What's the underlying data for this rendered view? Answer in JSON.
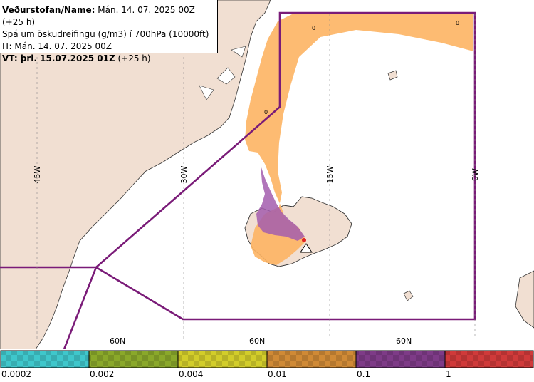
{
  "header": {
    "line1_bold": "Veðurstofan/Name:",
    "line1_rest": " Mán. 14. 07. 2025 00Z (+25 h)",
    "line2": "Spá um öskudreifingu (g/m3) í 700hPa (10000ft)",
    "line3": "IT: Mán. 14. 07. 2025 00Z",
    "line4_bold": "VT: þri. 15.07.2025 01Z",
    "line4_rest": " (+25 h)"
  },
  "map": {
    "longitude_labels": [
      "45W",
      "30W",
      "15W",
      "0W"
    ],
    "latitude_labels": [
      "60N",
      "60N",
      "60N"
    ],
    "contour_labels": [
      "0",
      "0",
      "0"
    ],
    "colors": {
      "land": "#f1dfd2",
      "sea": "#ffffff",
      "fir_boundary": "#7a1b78",
      "ash_low": "#fdb463",
      "ash_high": "#a35dae",
      "volcano_marker": "#e02424"
    }
  },
  "legend": {
    "thresholds": [
      "0.0002",
      "0.002",
      "0.004",
      "0.01",
      "0.1",
      "1"
    ],
    "colors": [
      "#3fc7cb",
      "#8aa82a",
      "#d2cd2a",
      "#d08a36",
      "#7e3b87",
      "#d03a3a"
    ]
  }
}
